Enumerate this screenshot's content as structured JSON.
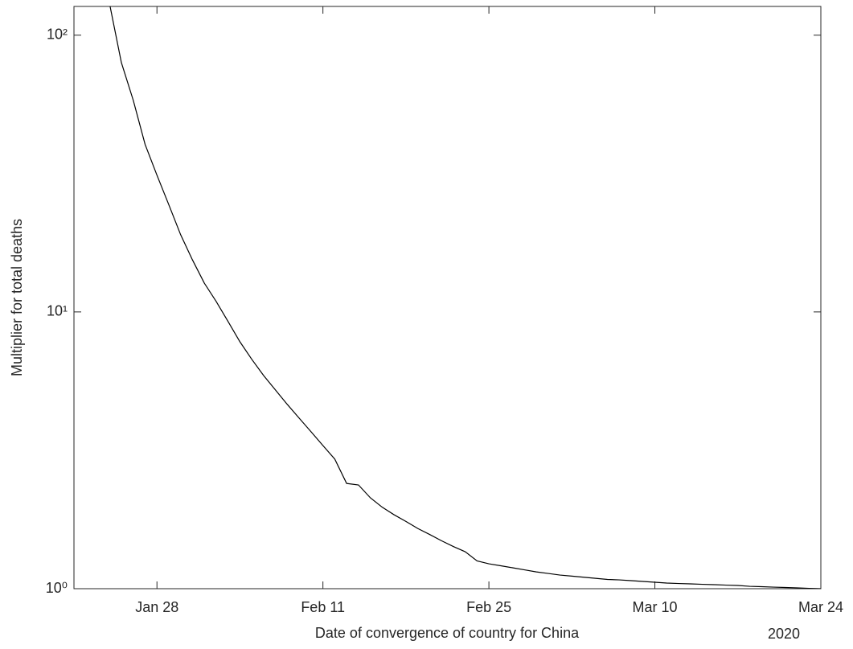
{
  "chart_data": {
    "type": "line",
    "xlabel": "Date of convergence of country for China",
    "ylabel": "Multiplier for total deaths",
    "x_year_label": "2020",
    "log_y": true,
    "xlim": [
      "2020-01-21",
      "2020-03-24"
    ],
    "ylim": [
      1,
      127
    ],
    "xticks": [
      {
        "value": "2020-01-28",
        "label": "Jan 28"
      },
      {
        "value": "2020-02-11",
        "label": "Feb 11"
      },
      {
        "value": "2020-02-25",
        "label": "Feb 25"
      },
      {
        "value": "2020-03-10",
        "label": "Mar 10"
      },
      {
        "value": "2020-03-24",
        "label": "Mar 24"
      }
    ],
    "yticks": [
      {
        "value": 1,
        "label": "10⁰"
      },
      {
        "value": 10,
        "label": "10¹"
      },
      {
        "value": 100,
        "label": "10²"
      }
    ],
    "x": [
      "2020-01-24",
      "2020-01-25",
      "2020-01-26",
      "2020-01-27",
      "2020-01-28",
      "2020-01-29",
      "2020-01-30",
      "2020-01-31",
      "2020-02-01",
      "2020-02-02",
      "2020-02-03",
      "2020-02-04",
      "2020-02-05",
      "2020-02-06",
      "2020-02-07",
      "2020-02-08",
      "2020-02-09",
      "2020-02-10",
      "2020-02-11",
      "2020-02-12",
      "2020-02-13",
      "2020-02-14",
      "2020-02-15",
      "2020-02-16",
      "2020-02-17",
      "2020-02-18",
      "2020-02-19",
      "2020-02-20",
      "2020-02-21",
      "2020-02-22",
      "2020-02-23",
      "2020-02-24",
      "2020-02-25",
      "2020-02-26",
      "2020-02-27",
      "2020-02-28",
      "2020-02-29",
      "2020-03-01",
      "2020-03-02",
      "2020-03-03",
      "2020-03-04",
      "2020-03-05",
      "2020-03-06",
      "2020-03-07",
      "2020-03-08",
      "2020-03-09",
      "2020-03-10",
      "2020-03-11",
      "2020-03-12",
      "2020-03-13",
      "2020-03-14",
      "2020-03-15",
      "2020-03-16",
      "2020-03-17",
      "2020-03-18",
      "2020-03-19",
      "2020-03-20",
      "2020-03-21",
      "2020-03-22",
      "2020-03-23",
      "2020-03-24"
    ],
    "series": [
      {
        "name": "China",
        "color": "#000000",
        "values": [
          130,
          79.6,
          58.2,
          40.3,
          31.2,
          24.4,
          19.0,
          15.4,
          12.7,
          10.9,
          9.23,
          7.8,
          6.74,
          5.89,
          5.22,
          4.63,
          4.13,
          3.69,
          3.29,
          2.94,
          2.4,
          2.37,
          2.13,
          1.97,
          1.85,
          1.75,
          1.65,
          1.57,
          1.49,
          1.42,
          1.36,
          1.26,
          1.23,
          1.21,
          1.19,
          1.17,
          1.15,
          1.135,
          1.12,
          1.11,
          1.1,
          1.09,
          1.08,
          1.076,
          1.069,
          1.062,
          1.055,
          1.048,
          1.044,
          1.041,
          1.037,
          1.034,
          1.03,
          1.027,
          1.02,
          1.017,
          1.013,
          1.01,
          1.007,
          1.003,
          1.0
        ]
      }
    ]
  }
}
